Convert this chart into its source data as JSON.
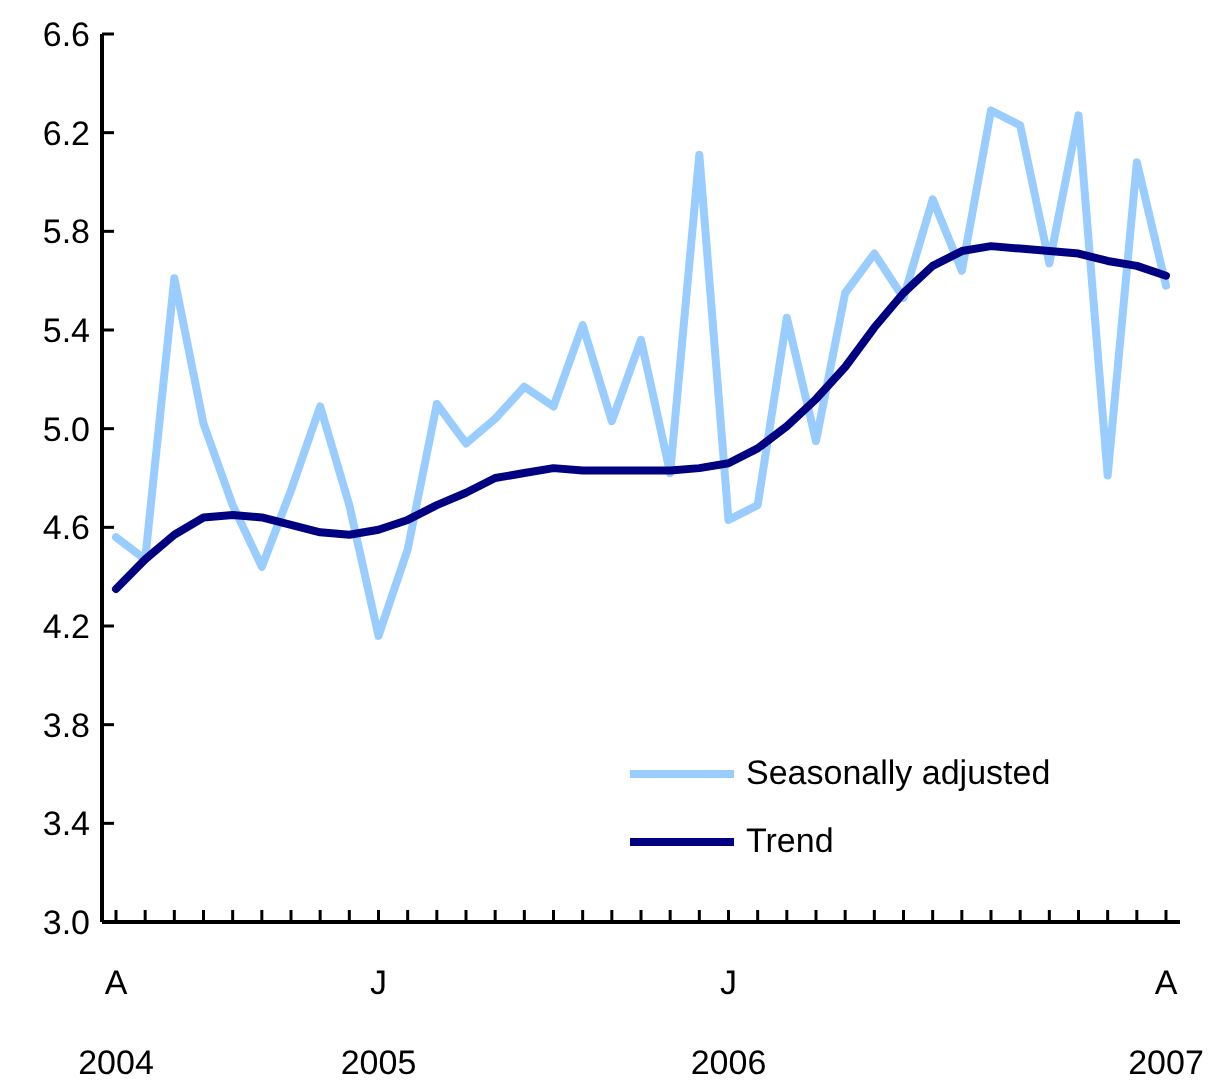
{
  "chart_data": {
    "type": "line",
    "categories": [
      "A\n2004",
      null,
      null,
      null,
      null,
      null,
      null,
      null,
      null,
      "J\n2005",
      null,
      null,
      null,
      null,
      null,
      null,
      null,
      null,
      null,
      null,
      null,
      "J\n2006",
      null,
      null,
      null,
      null,
      null,
      null,
      null,
      null,
      null,
      null,
      null,
      null,
      null,
      null,
      "A\n2007"
    ],
    "series": [
      {
        "name": "Seasonally adjusted",
        "color": "#99ccff",
        "values": [
          4.56,
          4.47,
          5.61,
          5.02,
          4.69,
          4.44,
          4.75,
          5.09,
          4.69,
          4.16,
          4.51,
          5.1,
          4.94,
          5.04,
          5.17,
          5.09,
          5.42,
          5.03,
          5.36,
          4.82,
          6.11,
          4.63,
          4.69,
          5.45,
          4.95,
          5.55,
          5.71,
          5.53,
          5.93,
          5.64,
          6.29,
          6.23,
          5.67,
          6.27,
          4.81,
          6.08,
          5.58
        ]
      },
      {
        "name": "Trend",
        "color": "#000080",
        "values": [
          4.35,
          4.47,
          4.57,
          4.64,
          4.65,
          4.64,
          4.61,
          4.58,
          4.57,
          4.59,
          4.63,
          4.69,
          4.74,
          4.8,
          4.82,
          4.84,
          4.83,
          4.83,
          4.83,
          4.83,
          4.84,
          4.86,
          4.92,
          5.01,
          5.12,
          5.25,
          5.41,
          5.55,
          5.66,
          5.72,
          5.74,
          5.73,
          5.72,
          5.71,
          5.68,
          5.66,
          5.62
        ]
      }
    ],
    "ylim": [
      3.0,
      6.6
    ],
    "yticks": [
      {
        "value": 3.0,
        "label": "3.0"
      },
      {
        "value": 3.4,
        "label": "3.4"
      },
      {
        "value": 3.8,
        "label": "3.8"
      },
      {
        "value": 4.2,
        "label": "4.2"
      },
      {
        "value": 4.6,
        "label": "4.6"
      },
      {
        "value": 5.0,
        "label": "5.0"
      },
      {
        "value": 5.4,
        "label": "5.4"
      },
      {
        "value": 5.8,
        "label": "5.8"
      },
      {
        "value": 6.2,
        "label": "6.2"
      },
      {
        "value": 6.6,
        "label": "6.6"
      }
    ],
    "grid": false,
    "legend": "bottom right",
    "marker": "none",
    "line_style": "solid"
  }
}
